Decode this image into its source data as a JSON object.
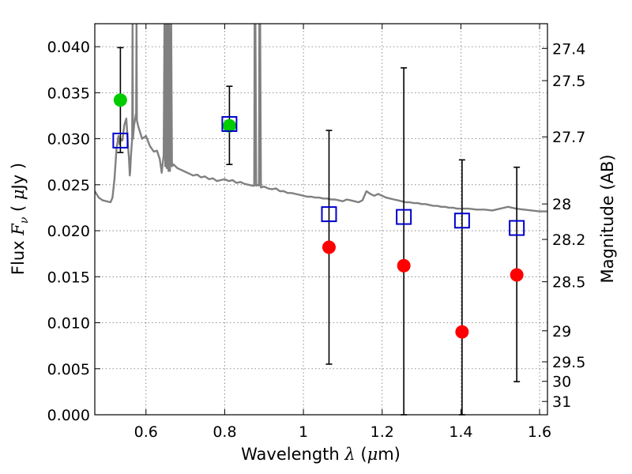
{
  "chart_data": {
    "type": "scatter",
    "xlabel": {
      "prefix": "Wavelength  ",
      "symbol": "λ",
      "unit_open": " (",
      "unit_symbol": "μ",
      "unit_close": "m)"
    },
    "ylabel": {
      "prefix": "Flux  ",
      "symbol": "F",
      "subscript": "ν",
      "unit_open": "  ( ",
      "unit_symbol": "μ",
      "unit_close": "Jy )"
    },
    "y2label": "Magnitude (AB)",
    "xlim": [
      0.47,
      1.62
    ],
    "ylim": [
      0.0,
      0.0425
    ],
    "xticks": [
      {
        "value": 0.6,
        "label": "0.6"
      },
      {
        "value": 0.8,
        "label": "0.8"
      },
      {
        "value": 1.0,
        "label": "1"
      },
      {
        "value": 1.2,
        "label": "1.2"
      },
      {
        "value": 1.4,
        "label": "1.4"
      },
      {
        "value": 1.6,
        "label": "1.6"
      }
    ],
    "yticks": [
      {
        "value": 0.0,
        "label": "0.000"
      },
      {
        "value": 0.005,
        "label": "0.005"
      },
      {
        "value": 0.01,
        "label": "0.010"
      },
      {
        "value": 0.015,
        "label": "0.015"
      },
      {
        "value": 0.02,
        "label": "0.020"
      },
      {
        "value": 0.025,
        "label": "0.025"
      },
      {
        "value": 0.03,
        "label": "0.030"
      },
      {
        "value": 0.035,
        "label": "0.035"
      },
      {
        "value": 0.04,
        "label": "0.040"
      }
    ],
    "y2ticks": [
      {
        "value": 27.4,
        "label": "27.4"
      },
      {
        "value": 27.5,
        "label": "27.5"
      },
      {
        "value": 27.7,
        "label": "27.7"
      },
      {
        "value": 28,
        "label": "28"
      },
      {
        "value": 28.2,
        "label": "28.2"
      },
      {
        "value": 28.5,
        "label": "28.5"
      },
      {
        "value": 29,
        "label": "29"
      },
      {
        "value": 29.5,
        "label": "29.5"
      },
      {
        "value": 30,
        "label": "30"
      },
      {
        "value": 31,
        "label": "31"
      }
    ],
    "grid": true,
    "series": [
      {
        "name": "template-spectrum",
        "kind": "line",
        "color": "#808080",
        "points": [
          [
            0.47,
            0.0243
          ],
          [
            0.48,
            0.0236
          ],
          [
            0.49,
            0.0233
          ],
          [
            0.5,
            0.0232
          ],
          [
            0.51,
            0.0231
          ],
          [
            0.515,
            0.0236
          ],
          [
            0.52,
            0.0256
          ],
          [
            0.525,
            0.0288
          ],
          [
            0.53,
            0.0303
          ],
          [
            0.533,
            0.0294
          ],
          [
            0.536,
            0.03
          ],
          [
            0.54,
            0.0298
          ],
          [
            0.545,
            0.0315
          ],
          [
            0.55,
            0.0322
          ],
          [
            0.553,
            0.0302
          ],
          [
            0.555,
            0.0288
          ],
          [
            0.557,
            0.0278
          ],
          [
            0.559,
            0.026
          ],
          [
            0.56,
            0.0265
          ],
          [
            0.562,
            0.0282
          ],
          [
            0.565,
            0.03
          ],
          [
            0.566,
            0.0425
          ],
          [
            0.567,
            0.03
          ],
          [
            0.57,
            0.0315
          ],
          [
            0.575,
            0.0328
          ],
          [
            0.576,
            0.0425
          ],
          [
            0.577,
            0.032
          ],
          [
            0.58,
            0.0314
          ],
          [
            0.585,
            0.0307
          ],
          [
            0.59,
            0.03
          ],
          [
            0.6,
            0.0303
          ],
          [
            0.61,
            0.0292
          ],
          [
            0.62,
            0.0286
          ],
          [
            0.628,
            0.0287
          ],
          [
            0.635,
            0.0278
          ],
          [
            0.64,
            0.0263
          ],
          [
            0.643,
            0.0275
          ],
          [
            0.645,
            0.0282
          ],
          [
            0.647,
            0.0425
          ],
          [
            0.649,
            0.027
          ],
          [
            0.651,
            0.0425
          ],
          [
            0.653,
            0.0268
          ],
          [
            0.655,
            0.0425
          ],
          [
            0.657,
            0.0265
          ],
          [
            0.659,
            0.0425
          ],
          [
            0.661,
            0.0265
          ],
          [
            0.664,
            0.0425
          ],
          [
            0.666,
            0.027
          ],
          [
            0.67,
            0.0272
          ],
          [
            0.68,
            0.0268
          ],
          [
            0.69,
            0.0266
          ],
          [
            0.7,
            0.0264
          ],
          [
            0.71,
            0.0262
          ],
          [
            0.72,
            0.026
          ],
          [
            0.73,
            0.0261
          ],
          [
            0.74,
            0.0258
          ],
          [
            0.75,
            0.0259
          ],
          [
            0.76,
            0.0256
          ],
          [
            0.77,
            0.0257
          ],
          [
            0.78,
            0.0254
          ],
          [
            0.79,
            0.0255
          ],
          [
            0.8,
            0.0256
          ],
          [
            0.81,
            0.0254
          ],
          [
            0.82,
            0.0255
          ],
          [
            0.83,
            0.0252
          ],
          [
            0.84,
            0.0253
          ],
          [
            0.85,
            0.0251
          ],
          [
            0.86,
            0.025
          ],
          [
            0.87,
            0.0249
          ],
          [
            0.875,
            0.0249
          ],
          [
            0.876,
            0.0425
          ],
          [
            0.878,
            0.0425
          ],
          [
            0.88,
            0.0249
          ],
          [
            0.885,
            0.025
          ],
          [
            0.887,
            0.0249
          ],
          [
            0.888,
            0.0425
          ],
          [
            0.89,
            0.0425
          ],
          [
            0.892,
            0.0247
          ],
          [
            0.9,
            0.0248
          ],
          [
            0.91,
            0.0246
          ],
          [
            0.92,
            0.0245
          ],
          [
            0.93,
            0.0246
          ],
          [
            0.94,
            0.0243
          ],
          [
            0.95,
            0.0243
          ],
          [
            0.96,
            0.0241
          ],
          [
            0.97,
            0.0241
          ],
          [
            0.98,
            0.024
          ],
          [
            0.99,
            0.0239
          ],
          [
            1.0,
            0.0238
          ],
          [
            1.01,
            0.0237
          ],
          [
            1.02,
            0.0237
          ],
          [
            1.03,
            0.0236
          ],
          [
            1.04,
            0.0236
          ],
          [
            1.05,
            0.0235
          ],
          [
            1.06,
            0.0235
          ],
          [
            1.07,
            0.0234
          ],
          [
            1.08,
            0.0234
          ],
          [
            1.09,
            0.0233
          ],
          [
            1.1,
            0.0232
          ],
          [
            1.11,
            0.0234
          ],
          [
            1.12,
            0.0233
          ],
          [
            1.13,
            0.0232
          ],
          [
            1.14,
            0.0231
          ],
          [
            1.15,
            0.0233
          ],
          [
            1.16,
            0.0243
          ],
          [
            1.17,
            0.024
          ],
          [
            1.18,
            0.0238
          ],
          [
            1.19,
            0.024
          ],
          [
            1.2,
            0.0238
          ],
          [
            1.21,
            0.0236
          ],
          [
            1.22,
            0.0235
          ],
          [
            1.23,
            0.0234
          ],
          [
            1.24,
            0.0233
          ],
          [
            1.25,
            0.0232
          ],
          [
            1.26,
            0.0231
          ],
          [
            1.27,
            0.0231
          ],
          [
            1.28,
            0.023
          ],
          [
            1.29,
            0.023
          ],
          [
            1.3,
            0.0229
          ],
          [
            1.31,
            0.0229
          ],
          [
            1.32,
            0.0228
          ],
          [
            1.33,
            0.0227
          ],
          [
            1.34,
            0.0227
          ],
          [
            1.35,
            0.0226
          ],
          [
            1.36,
            0.0226
          ],
          [
            1.37,
            0.0225
          ],
          [
            1.38,
            0.0225
          ],
          [
            1.39,
            0.0224
          ],
          [
            1.4,
            0.0224
          ],
          [
            1.42,
            0.0224
          ],
          [
            1.44,
            0.0223
          ],
          [
            1.46,
            0.0223
          ],
          [
            1.48,
            0.0222
          ],
          [
            1.5,
            0.0224
          ],
          [
            1.52,
            0.0226
          ],
          [
            1.54,
            0.0224
          ],
          [
            1.56,
            0.0223
          ],
          [
            1.58,
            0.0222
          ],
          [
            1.6,
            0.0221
          ],
          [
            1.62,
            0.0221
          ]
        ]
      },
      {
        "name": "model-photometry",
        "kind": "open-square",
        "color": "#0000cc",
        "points": [
          [
            0.535,
            0.0298
          ],
          [
            0.812,
            0.0316
          ],
          [
            1.065,
            0.0218
          ],
          [
            1.255,
            0.0215
          ],
          [
            1.403,
            0.0211
          ],
          [
            1.542,
            0.0203
          ]
        ]
      },
      {
        "name": "observed-detections",
        "kind": "filled-circle",
        "color": "#00cc00",
        "points": [
          [
            0.535,
            0.0342
          ],
          [
            0.812,
            0.0314
          ]
        ]
      },
      {
        "name": "observed-nondetections",
        "kind": "filled-circle",
        "color": "#ff0000",
        "points": [
          [
            1.065,
            0.0182
          ],
          [
            1.255,
            0.0162
          ],
          [
            1.403,
            0.009
          ],
          [
            1.542,
            0.0152
          ]
        ]
      },
      {
        "name": "error-bars",
        "kind": "errorbar",
        "color": "#000000",
        "bars": [
          {
            "x": 0.535,
            "low": 0.0285,
            "high": 0.0399
          },
          {
            "x": 0.812,
            "low": 0.0272,
            "high": 0.0357
          },
          {
            "x": 1.065,
            "low": 0.0055,
            "high": 0.0309
          },
          {
            "x": 1.255,
            "low": 0.0,
            "high": 0.0377
          },
          {
            "x": 1.403,
            "low": 0.0,
            "high": 0.0277
          },
          {
            "x": 1.542,
            "low": 0.0036,
            "high": 0.0269
          }
        ]
      }
    ]
  }
}
